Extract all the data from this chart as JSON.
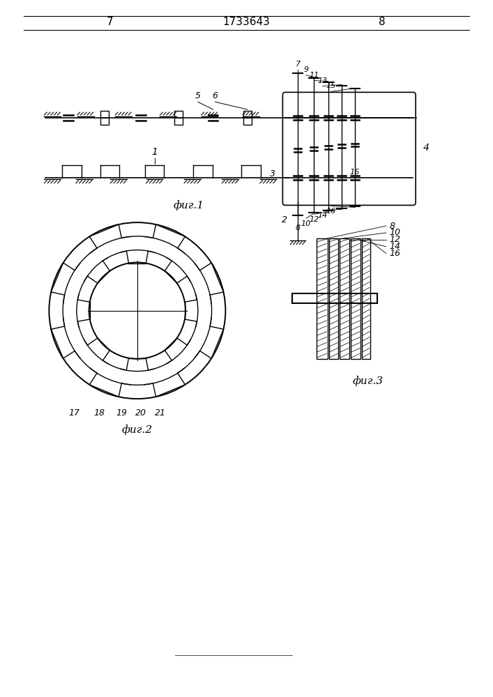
{
  "bg_color": "#ffffff",
  "line_color": "#000000",
  "page_number_left": "7",
  "page_number_center": "1733643",
  "page_number_right": "8",
  "fig1_label": "фиг.1",
  "fig2_label": "фиг.2",
  "fig3_label": "фиг.3"
}
